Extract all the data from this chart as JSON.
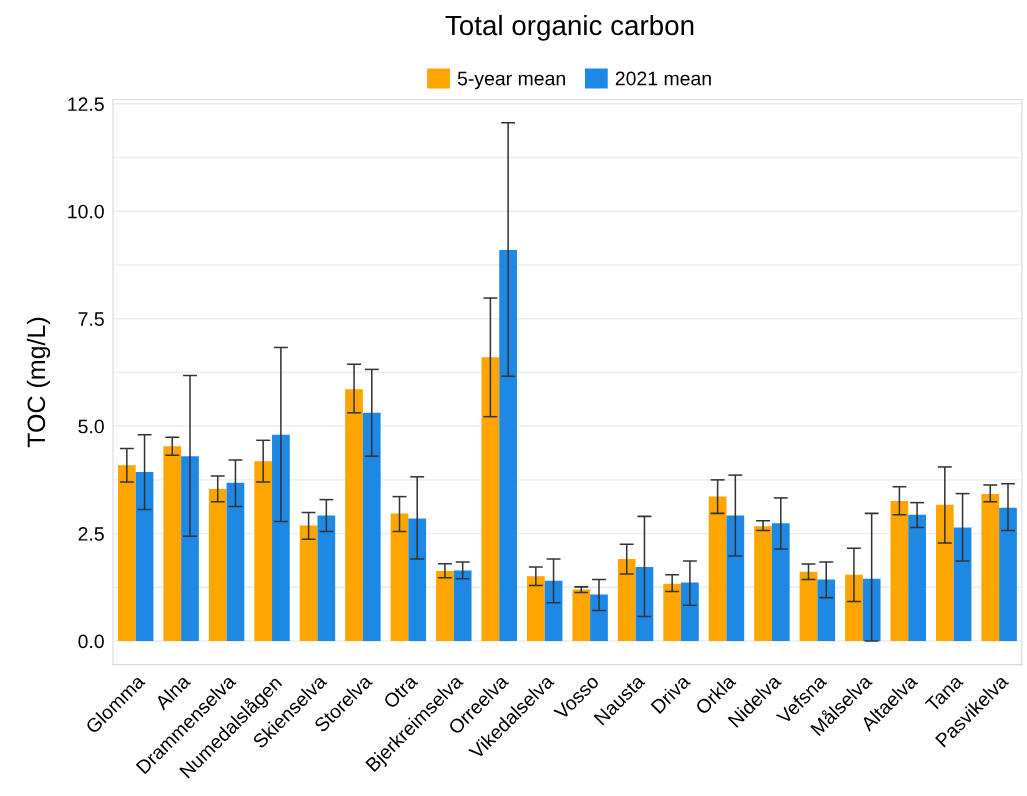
{
  "chart_data": {
    "type": "bar",
    "title": "Total organic carbon",
    "ylabel": "TOC (mg/L)",
    "categories": [
      "Glomma",
      "Alna",
      "Drammenselva",
      "Numedalslågen",
      "Skienselva",
      "Storelva",
      "Otra",
      "Bjerkreimselva",
      "Orreelva",
      "Vikedalselva",
      "Vosso",
      "Nausta",
      "Driva",
      "Orkla",
      "Nidelva",
      "Vefsna",
      "Målselva",
      "Altaelva",
      "Tana",
      "Pasvikelva"
    ],
    "series": [
      {
        "name": "5-year mean",
        "color": "#ffa500",
        "values": [
          4.09,
          4.53,
          3.54,
          4.18,
          2.69,
          5.86,
          2.97,
          1.63,
          6.6,
          1.51,
          1.2,
          1.91,
          1.33,
          3.36,
          2.67,
          1.61,
          1.54,
          3.26,
          3.17,
          3.42
        ],
        "errors": [
          [
            3.7,
            4.48
          ],
          [
            4.32,
            4.74
          ],
          [
            3.24,
            3.84
          ],
          [
            3.7,
            4.67
          ],
          [
            2.37,
            2.99
          ],
          [
            5.31,
            6.44
          ],
          [
            2.55,
            3.36
          ],
          [
            1.47,
            1.8
          ],
          [
            5.22,
            7.98
          ],
          [
            1.29,
            1.72
          ],
          [
            1.13,
            1.26
          ],
          [
            1.56,
            2.25
          ],
          [
            1.15,
            1.54
          ],
          [
            2.97,
            3.75
          ],
          [
            2.57,
            2.8
          ],
          [
            1.43,
            1.79
          ],
          [
            0.92,
            2.16
          ],
          [
            2.94,
            3.59
          ],
          [
            2.28,
            4.05
          ],
          [
            3.24,
            3.63
          ]
        ]
      },
      {
        "name": "2021 mean",
        "color": "#1e88e5",
        "values": [
          3.93,
          4.3,
          3.68,
          4.8,
          2.92,
          5.31,
          2.85,
          1.64,
          9.1,
          1.4,
          1.08,
          1.72,
          1.36,
          2.92,
          2.74,
          1.43,
          1.45,
          2.94,
          2.64,
          3.1
        ],
        "errors": [
          [
            3.06,
            4.8
          ],
          [
            2.44,
            6.18
          ],
          [
            3.13,
            4.21
          ],
          [
            2.78,
            6.83
          ],
          [
            2.55,
            3.29
          ],
          [
            4.3,
            6.32
          ],
          [
            1.91,
            3.82
          ],
          [
            1.45,
            1.84
          ],
          [
            6.16,
            12.06
          ],
          [
            0.89,
            1.91
          ],
          [
            0.71,
            1.43
          ],
          [
            0.57,
            2.9
          ],
          [
            0.83,
            1.86
          ],
          [
            1.98,
            3.86
          ],
          [
            2.14,
            3.33
          ],
          [
            1.01,
            1.84
          ],
          [
            0.0,
            2.97
          ],
          [
            2.64,
            3.22
          ],
          [
            1.86,
            3.43
          ],
          [
            2.57,
            3.66
          ]
        ]
      }
    ],
    "ylim": [
      -0.55,
      12.6
    ],
    "yticks": [
      {
        "value": 0,
        "label": "0.0"
      },
      {
        "value": 1.25,
        "label": null
      },
      {
        "value": 2.5,
        "label": "2.5"
      },
      {
        "value": 3.75,
        "label": null
      },
      {
        "value": 5,
        "label": "5.0"
      },
      {
        "value": 6.25,
        "label": null
      },
      {
        "value": 7.5,
        "label": "7.5"
      },
      {
        "value": 8.75,
        "label": null
      },
      {
        "value": 10,
        "label": "10.0"
      },
      {
        "value": 11.25,
        "label": null
      },
      {
        "value": 12.5,
        "label": "12.5"
      }
    ],
    "grid": "y",
    "legend": "top"
  }
}
